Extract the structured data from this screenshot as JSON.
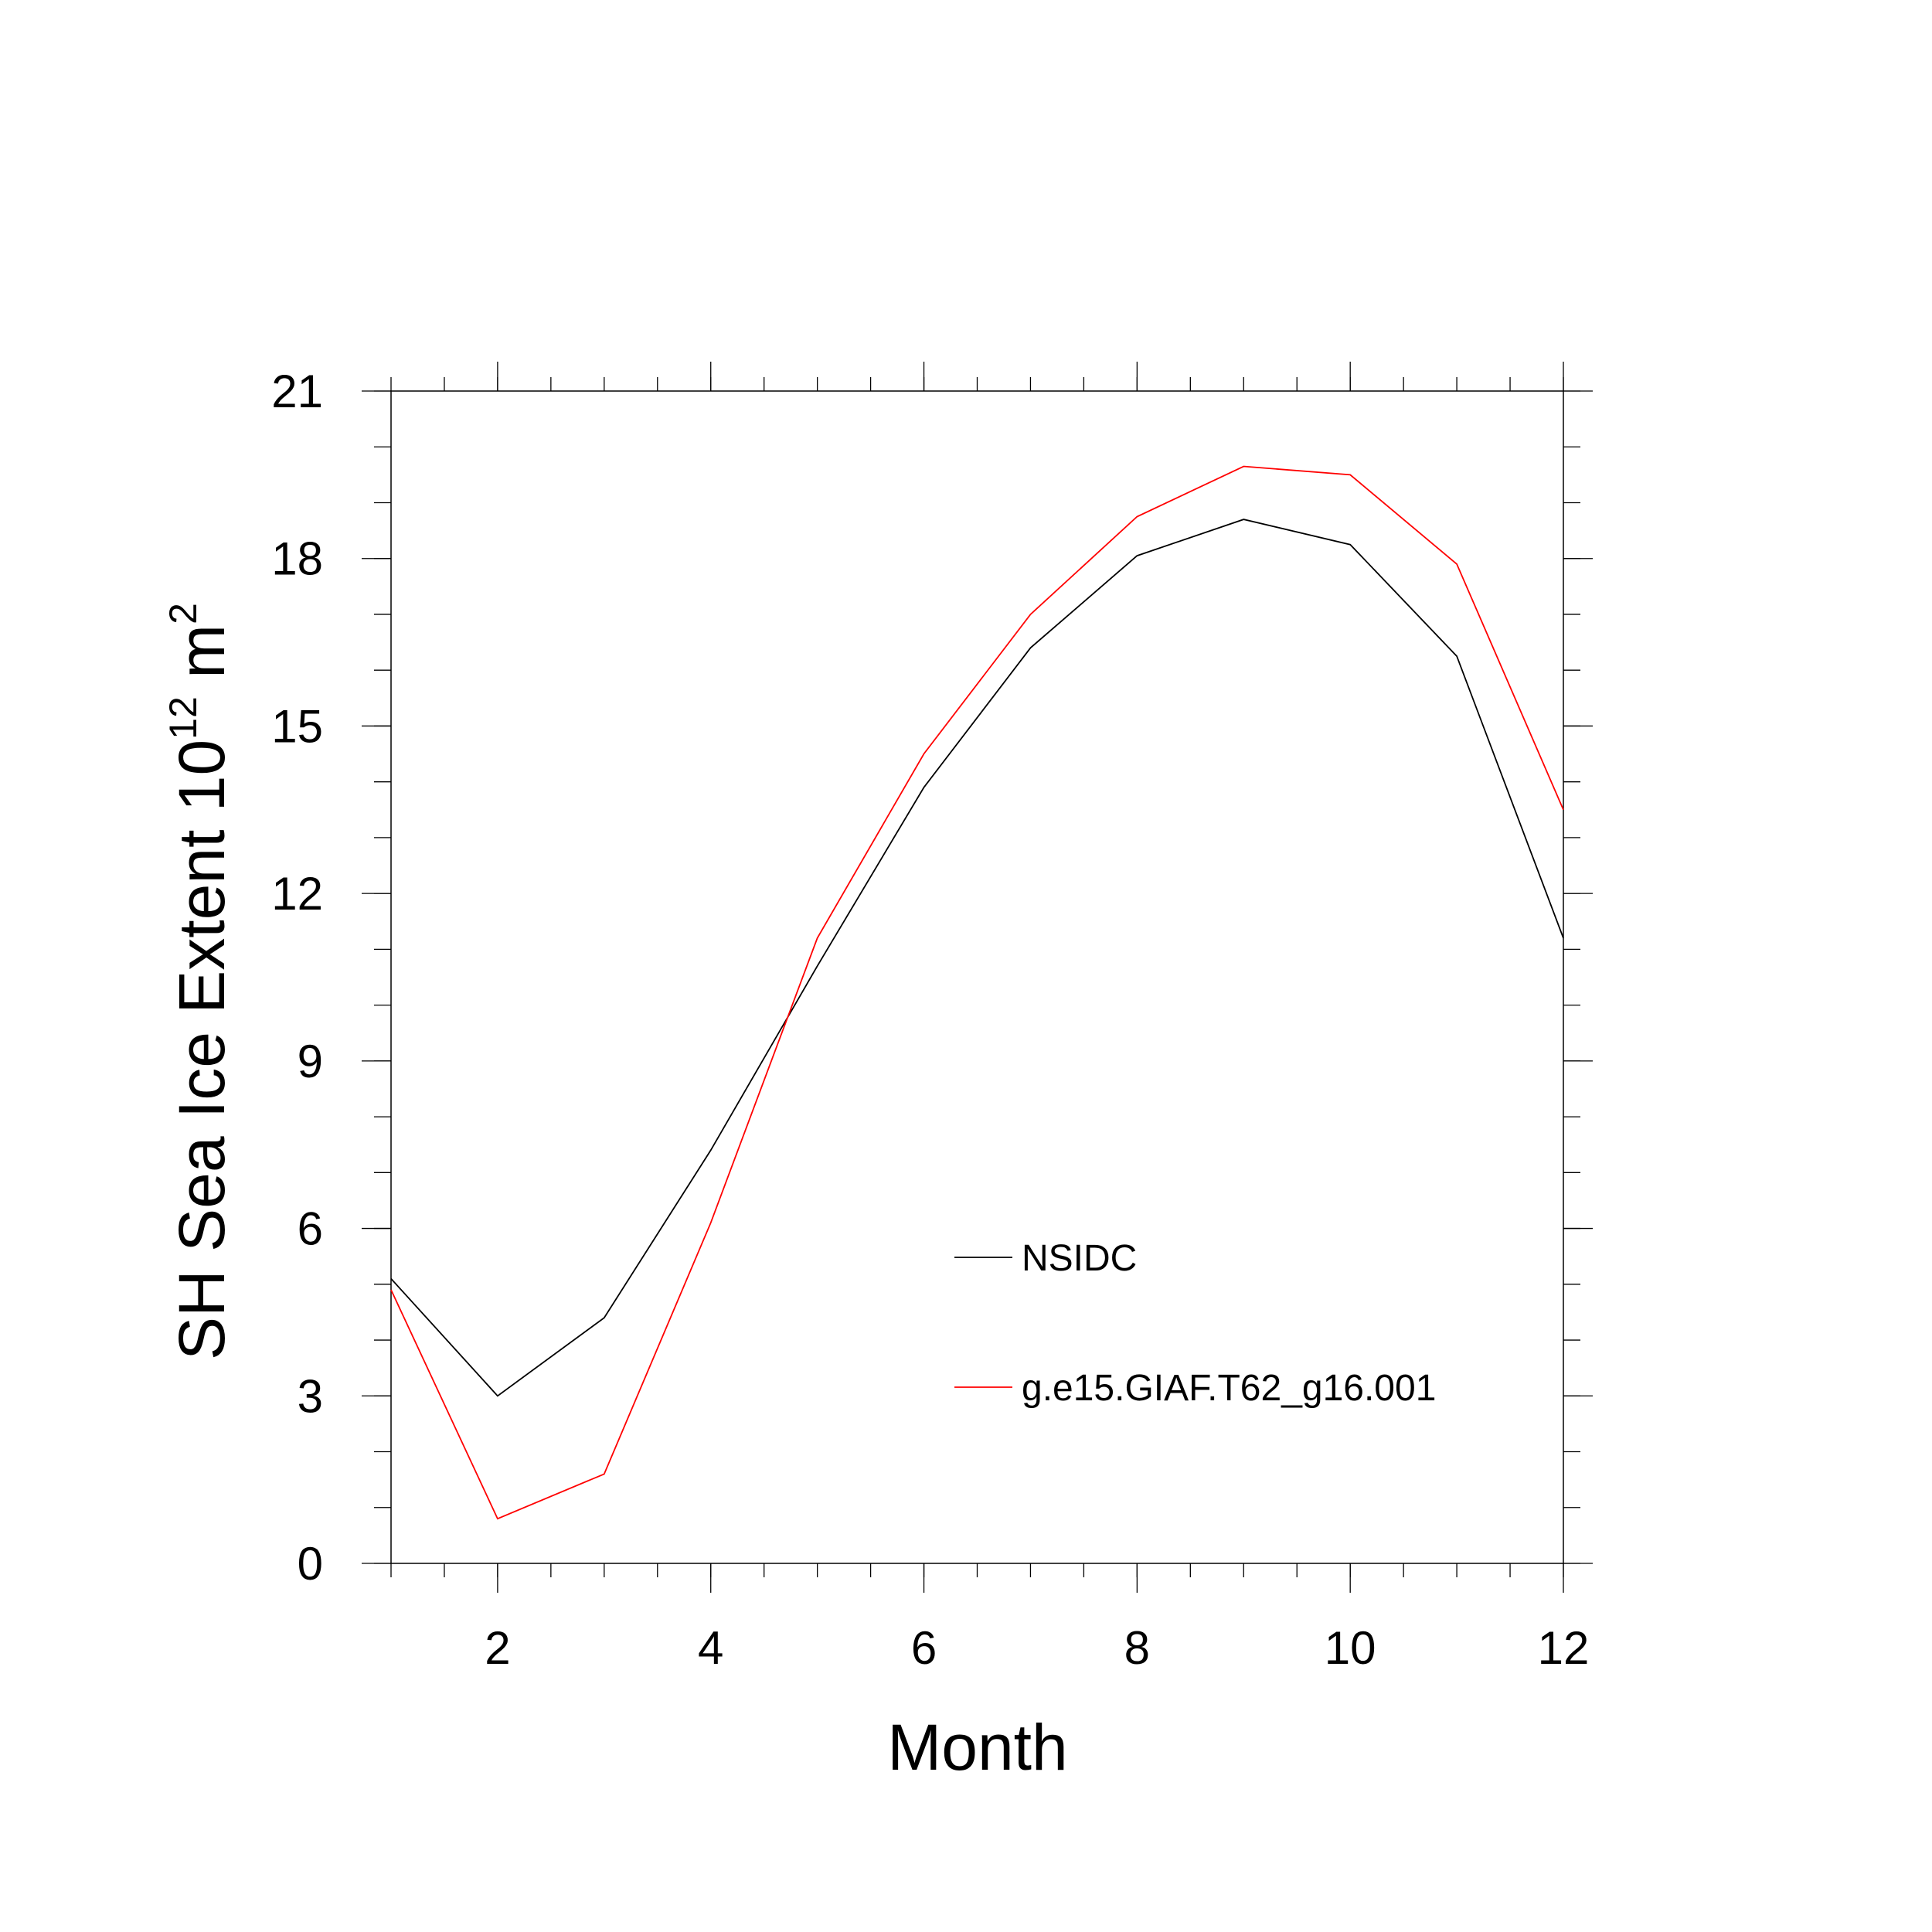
{
  "chart_data": {
    "type": "line",
    "xlabel": "Month",
    "ylabel": {
      "text": "SH Sea Ice Extent 10",
      "superscript": "12",
      "unit": " m",
      "unit_superscript": "2"
    },
    "xlim": [
      1,
      12
    ],
    "ylim": [
      0,
      21
    ],
    "x_ticks": [
      2,
      4,
      6,
      8,
      10,
      12
    ],
    "y_ticks": [
      0,
      3,
      6,
      9,
      12,
      15,
      18,
      21
    ],
    "x": [
      1,
      2,
      3,
      4,
      5,
      6,
      7,
      8,
      9,
      10,
      11,
      12
    ],
    "series": [
      {
        "name": "NSIDC",
        "color": "#000000",
        "values": [
          5.1,
          3.0,
          4.4,
          7.4,
          10.7,
          13.9,
          16.4,
          18.05,
          18.7,
          18.25,
          16.25,
          11.2
        ]
      },
      {
        "name": "g.e15.GIAF.T62_g16.001",
        "color": "#ff0000",
        "values": [
          4.9,
          0.8,
          1.6,
          6.1,
          11.2,
          14.5,
          17.0,
          18.75,
          19.65,
          19.5,
          17.9,
          13.5
        ]
      }
    ],
    "grid": false,
    "legend": "lower-right, inside plot"
  }
}
